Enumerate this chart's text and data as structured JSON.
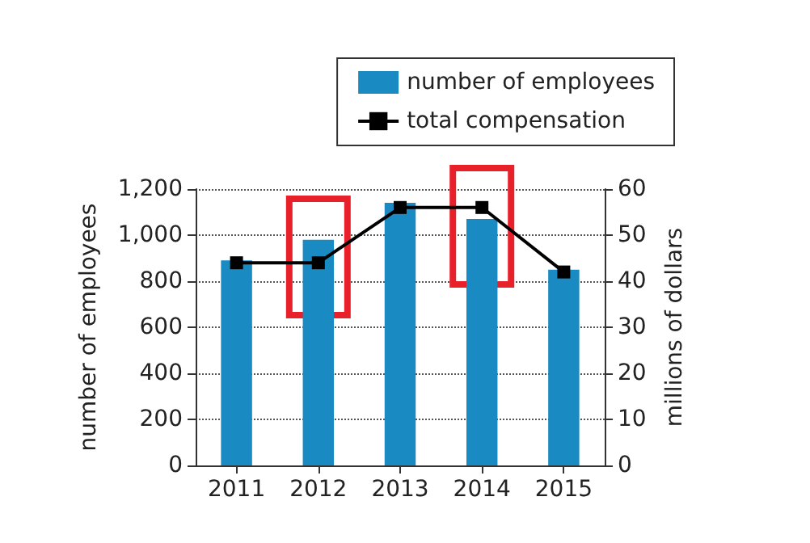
{
  "chart_data": {
    "type": "bar",
    "categories": [
      "2011",
      "2012",
      "2013",
      "2014",
      "2015"
    ],
    "ylabel": "number of employees",
    "y2label": "millions of dollars",
    "series": [
      {
        "name": "number of employees",
        "color": "#1a8ac2",
        "values": [
          890,
          980,
          1140,
          1070,
          850
        ]
      },
      {
        "name": "total compensation",
        "type": "line",
        "axis": "y2",
        "color": "#000000",
        "values": [
          44,
          44,
          56,
          56,
          42
        ]
      }
    ],
    "ylim": [
      0,
      1200
    ],
    "yticks": [
      0,
      200,
      400,
      600,
      800,
      {
        "value": 1000,
        "label": "1,000"
      },
      {
        "value": 1200,
        "label": "1,200"
      }
    ],
    "y2lim": [
      0,
      60
    ],
    "y2ticks": [
      0,
      10,
      20,
      30,
      40,
      50,
      60
    ],
    "grid": "y",
    "legend": "top right",
    "marker": "square",
    "line_style": "solid"
  }
}
